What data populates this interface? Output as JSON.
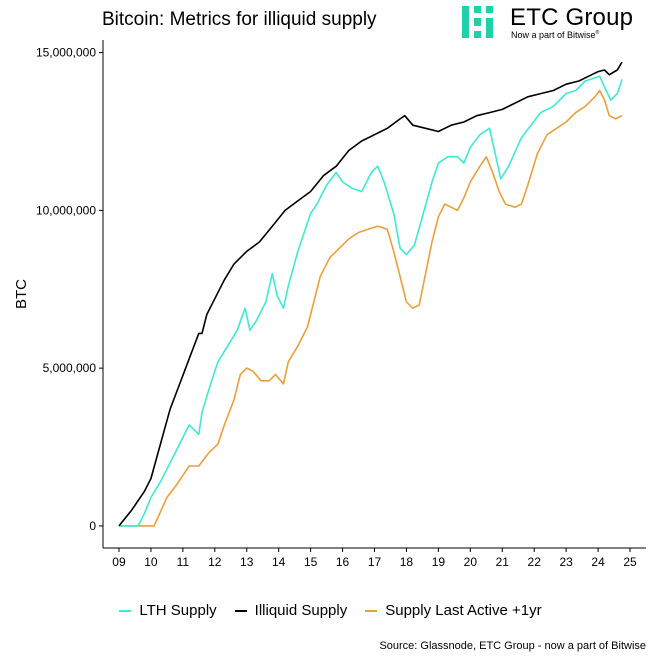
{
  "title": "Bitcoin: Metrics for illiquid supply",
  "logo": {
    "name": "ETC Group",
    "tagline": "Now a part of Bitwise",
    "tagline_mark": "®",
    "color": "#1fd1a6"
  },
  "source": "Source: Glassnode, ETC Group - now a part of Bitwise",
  "chart_data": {
    "type": "line",
    "title": "Bitcoin: Metrics for illiquid supply",
    "xlabel": "",
    "ylabel": "BTC",
    "xlim": [
      8.5,
      25.5
    ],
    "ylim": [
      -700000,
      15400000
    ],
    "x_ticks": [
      9,
      10,
      11,
      12,
      13,
      14,
      15,
      16,
      17,
      18,
      19,
      20,
      21,
      22,
      23,
      24,
      25
    ],
    "x_tick_labels": [
      "09",
      "10",
      "11",
      "12",
      "13",
      "14",
      "15",
      "16",
      "17",
      "18",
      "19",
      "20",
      "21",
      "22",
      "23",
      "24",
      "25"
    ],
    "y_ticks": [
      0,
      5000000,
      10000000,
      15000000
    ],
    "y_tick_labels": [
      "0",
      "5,000,000",
      "10,000,000",
      "15,000,000"
    ],
    "grid": false,
    "legend_position": "bottom",
    "series": [
      {
        "name": "LTH Supply",
        "color": "#40e8d2",
        "points": [
          [
            9.0,
            0
          ],
          [
            9.6,
            0
          ],
          [
            9.8,
            400000
          ],
          [
            10.0,
            900000
          ],
          [
            10.3,
            1400000
          ],
          [
            10.6,
            2000000
          ],
          [
            10.9,
            2600000
          ],
          [
            11.2,
            3200000
          ],
          [
            11.5,
            2900000
          ],
          [
            11.6,
            3600000
          ],
          [
            11.9,
            4600000
          ],
          [
            12.1,
            5200000
          ],
          [
            12.4,
            5700000
          ],
          [
            12.7,
            6200000
          ],
          [
            12.95,
            6900000
          ],
          [
            13.1,
            6200000
          ],
          [
            13.3,
            6500000
          ],
          [
            13.6,
            7100000
          ],
          [
            13.8,
            8000000
          ],
          [
            13.95,
            7300000
          ],
          [
            14.15,
            6900000
          ],
          [
            14.3,
            7600000
          ],
          [
            14.6,
            8700000
          ],
          [
            14.9,
            9600000
          ],
          [
            15.0,
            9900000
          ],
          [
            15.2,
            10200000
          ],
          [
            15.5,
            10800000
          ],
          [
            15.8,
            11200000
          ],
          [
            16.0,
            10900000
          ],
          [
            16.3,
            10700000
          ],
          [
            16.6,
            10600000
          ],
          [
            16.9,
            11200000
          ],
          [
            17.1,
            11400000
          ],
          [
            17.3,
            10900000
          ],
          [
            17.6,
            9900000
          ],
          [
            17.8,
            8800000
          ],
          [
            18.0,
            8600000
          ],
          [
            18.25,
            8900000
          ],
          [
            18.5,
            9800000
          ],
          [
            18.8,
            10900000
          ],
          [
            19.0,
            11500000
          ],
          [
            19.3,
            11700000
          ],
          [
            19.6,
            11700000
          ],
          [
            19.8,
            11500000
          ],
          [
            20.0,
            12000000
          ],
          [
            20.3,
            12400000
          ],
          [
            20.6,
            12600000
          ],
          [
            20.8,
            11700000
          ],
          [
            20.95,
            11000000
          ],
          [
            21.2,
            11400000
          ],
          [
            21.6,
            12300000
          ],
          [
            21.9,
            12700000
          ],
          [
            22.2,
            13100000
          ],
          [
            22.6,
            13300000
          ],
          [
            23.0,
            13700000
          ],
          [
            23.3,
            13800000
          ],
          [
            23.6,
            14100000
          ],
          [
            23.9,
            14200000
          ],
          [
            24.05,
            14250000
          ],
          [
            24.25,
            13800000
          ],
          [
            24.4,
            13500000
          ],
          [
            24.6,
            13700000
          ],
          [
            24.75,
            14150000
          ]
        ]
      },
      {
        "name": "Illiquid Supply",
        "color": "#000000",
        "points": [
          [
            9.0,
            0
          ],
          [
            9.4,
            500000
          ],
          [
            9.8,
            1100000
          ],
          [
            10.0,
            1500000
          ],
          [
            10.3,
            2600000
          ],
          [
            10.6,
            3700000
          ],
          [
            10.9,
            4500000
          ],
          [
            11.2,
            5300000
          ],
          [
            11.5,
            6100000
          ],
          [
            11.6,
            6100000
          ],
          [
            11.75,
            6700000
          ],
          [
            12.0,
            7200000
          ],
          [
            12.3,
            7800000
          ],
          [
            12.6,
            8300000
          ],
          [
            13.0,
            8700000
          ],
          [
            13.4,
            9000000
          ],
          [
            13.8,
            9500000
          ],
          [
            14.2,
            10000000
          ],
          [
            14.6,
            10300000
          ],
          [
            15.0,
            10600000
          ],
          [
            15.4,
            11100000
          ],
          [
            15.8,
            11400000
          ],
          [
            16.2,
            11900000
          ],
          [
            16.6,
            12200000
          ],
          [
            17.0,
            12400000
          ],
          [
            17.4,
            12600000
          ],
          [
            17.8,
            12900000
          ],
          [
            17.95,
            13000000
          ],
          [
            18.2,
            12700000
          ],
          [
            18.6,
            12600000
          ],
          [
            19.0,
            12500000
          ],
          [
            19.4,
            12700000
          ],
          [
            19.8,
            12800000
          ],
          [
            20.2,
            13000000
          ],
          [
            20.6,
            13100000
          ],
          [
            21.0,
            13200000
          ],
          [
            21.4,
            13400000
          ],
          [
            21.8,
            13600000
          ],
          [
            22.2,
            13700000
          ],
          [
            22.6,
            13800000
          ],
          [
            23.0,
            14000000
          ],
          [
            23.4,
            14100000
          ],
          [
            23.8,
            14300000
          ],
          [
            24.0,
            14400000
          ],
          [
            24.2,
            14450000
          ],
          [
            24.35,
            14300000
          ],
          [
            24.6,
            14450000
          ],
          [
            24.75,
            14700000
          ]
        ]
      },
      {
        "name": "Supply Last Active +1yr",
        "color": "#e9a03b",
        "points": [
          [
            9.0,
            0
          ],
          [
            10.1,
            0
          ],
          [
            10.5,
            900000
          ],
          [
            10.8,
            1300000
          ],
          [
            11.0,
            1600000
          ],
          [
            11.2,
            1900000
          ],
          [
            11.5,
            1900000
          ],
          [
            11.8,
            2300000
          ],
          [
            12.1,
            2600000
          ],
          [
            12.3,
            3200000
          ],
          [
            12.6,
            4000000
          ],
          [
            12.8,
            4800000
          ],
          [
            13.0,
            5000000
          ],
          [
            13.2,
            4900000
          ],
          [
            13.45,
            4600000
          ],
          [
            13.7,
            4600000
          ],
          [
            13.9,
            4800000
          ],
          [
            14.15,
            4500000
          ],
          [
            14.3,
            5200000
          ],
          [
            14.6,
            5700000
          ],
          [
            14.9,
            6300000
          ],
          [
            15.1,
            7100000
          ],
          [
            15.3,
            7900000
          ],
          [
            15.6,
            8500000
          ],
          [
            15.9,
            8800000
          ],
          [
            16.2,
            9100000
          ],
          [
            16.5,
            9300000
          ],
          [
            16.8,
            9400000
          ],
          [
            17.1,
            9500000
          ],
          [
            17.4,
            9400000
          ],
          [
            17.6,
            8700000
          ],
          [
            17.8,
            7900000
          ],
          [
            18.0,
            7100000
          ],
          [
            18.2,
            6900000
          ],
          [
            18.4,
            7000000
          ],
          [
            18.6,
            8000000
          ],
          [
            18.8,
            9000000
          ],
          [
            19.0,
            9800000
          ],
          [
            19.2,
            10200000
          ],
          [
            19.4,
            10100000
          ],
          [
            19.6,
            10000000
          ],
          [
            19.8,
            10400000
          ],
          [
            20.0,
            10900000
          ],
          [
            20.3,
            11400000
          ],
          [
            20.5,
            11700000
          ],
          [
            20.7,
            11200000
          ],
          [
            20.9,
            10600000
          ],
          [
            21.1,
            10200000
          ],
          [
            21.4,
            10100000
          ],
          [
            21.6,
            10200000
          ],
          [
            21.8,
            10800000
          ],
          [
            22.1,
            11800000
          ],
          [
            22.4,
            12400000
          ],
          [
            22.7,
            12600000
          ],
          [
            23.0,
            12800000
          ],
          [
            23.3,
            13100000
          ],
          [
            23.6,
            13300000
          ],
          [
            23.9,
            13600000
          ],
          [
            24.05,
            13800000
          ],
          [
            24.2,
            13500000
          ],
          [
            24.35,
            13000000
          ],
          [
            24.55,
            12900000
          ],
          [
            24.75,
            13000000
          ]
        ]
      }
    ]
  }
}
